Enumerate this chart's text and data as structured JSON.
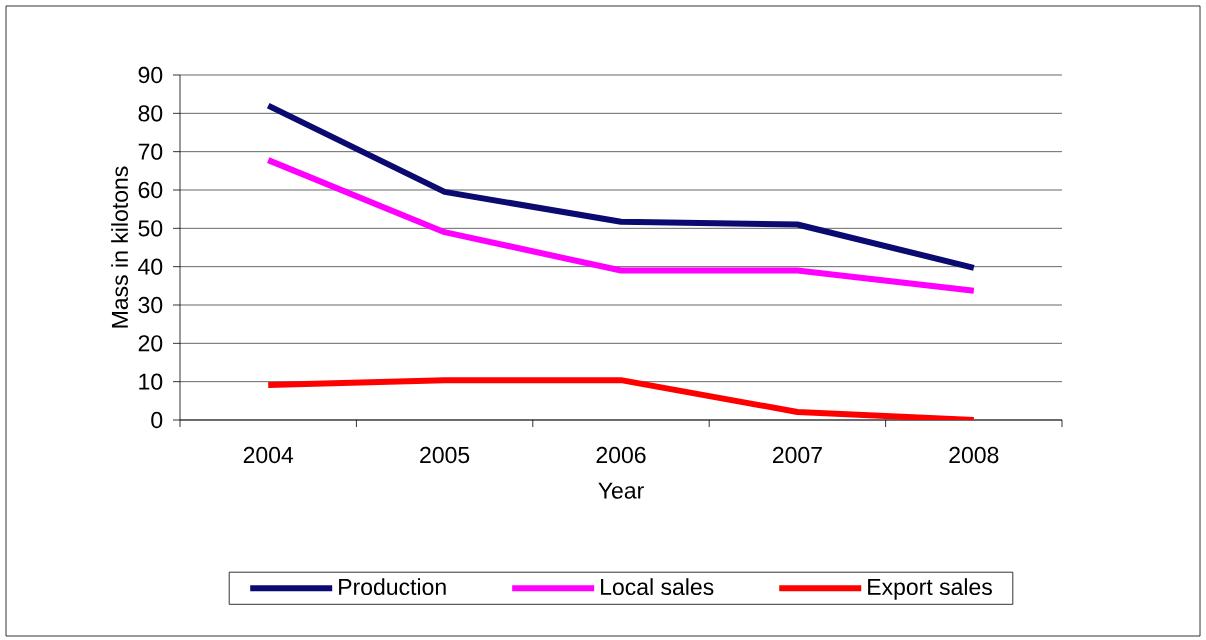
{
  "chart_data": {
    "type": "line",
    "xlabel": "Year",
    "ylabel": "Mass in kilotons",
    "categories": [
      "2004",
      "2005",
      "2006",
      "2007",
      "2008"
    ],
    "series": [
      {
        "name": "Production",
        "color": "#0a0a70",
        "values": [
          82,
          59.5,
          51.7,
          51,
          39.7
        ]
      },
      {
        "name": "Local sales",
        "color": "#ff00ff",
        "values": [
          67.8,
          49,
          39,
          39,
          33.7
        ]
      },
      {
        "name": "Export sales",
        "color": "#ff0000",
        "values": [
          9.1,
          10.4,
          10.4,
          2.1,
          0
        ]
      }
    ],
    "ylim": [
      0,
      90
    ],
    "yticks": [
      0,
      10,
      20,
      30,
      40,
      50,
      60,
      70,
      80,
      90
    ],
    "grid": "y",
    "legend": "bottom",
    "marker": "none",
    "line_style": "solid"
  }
}
